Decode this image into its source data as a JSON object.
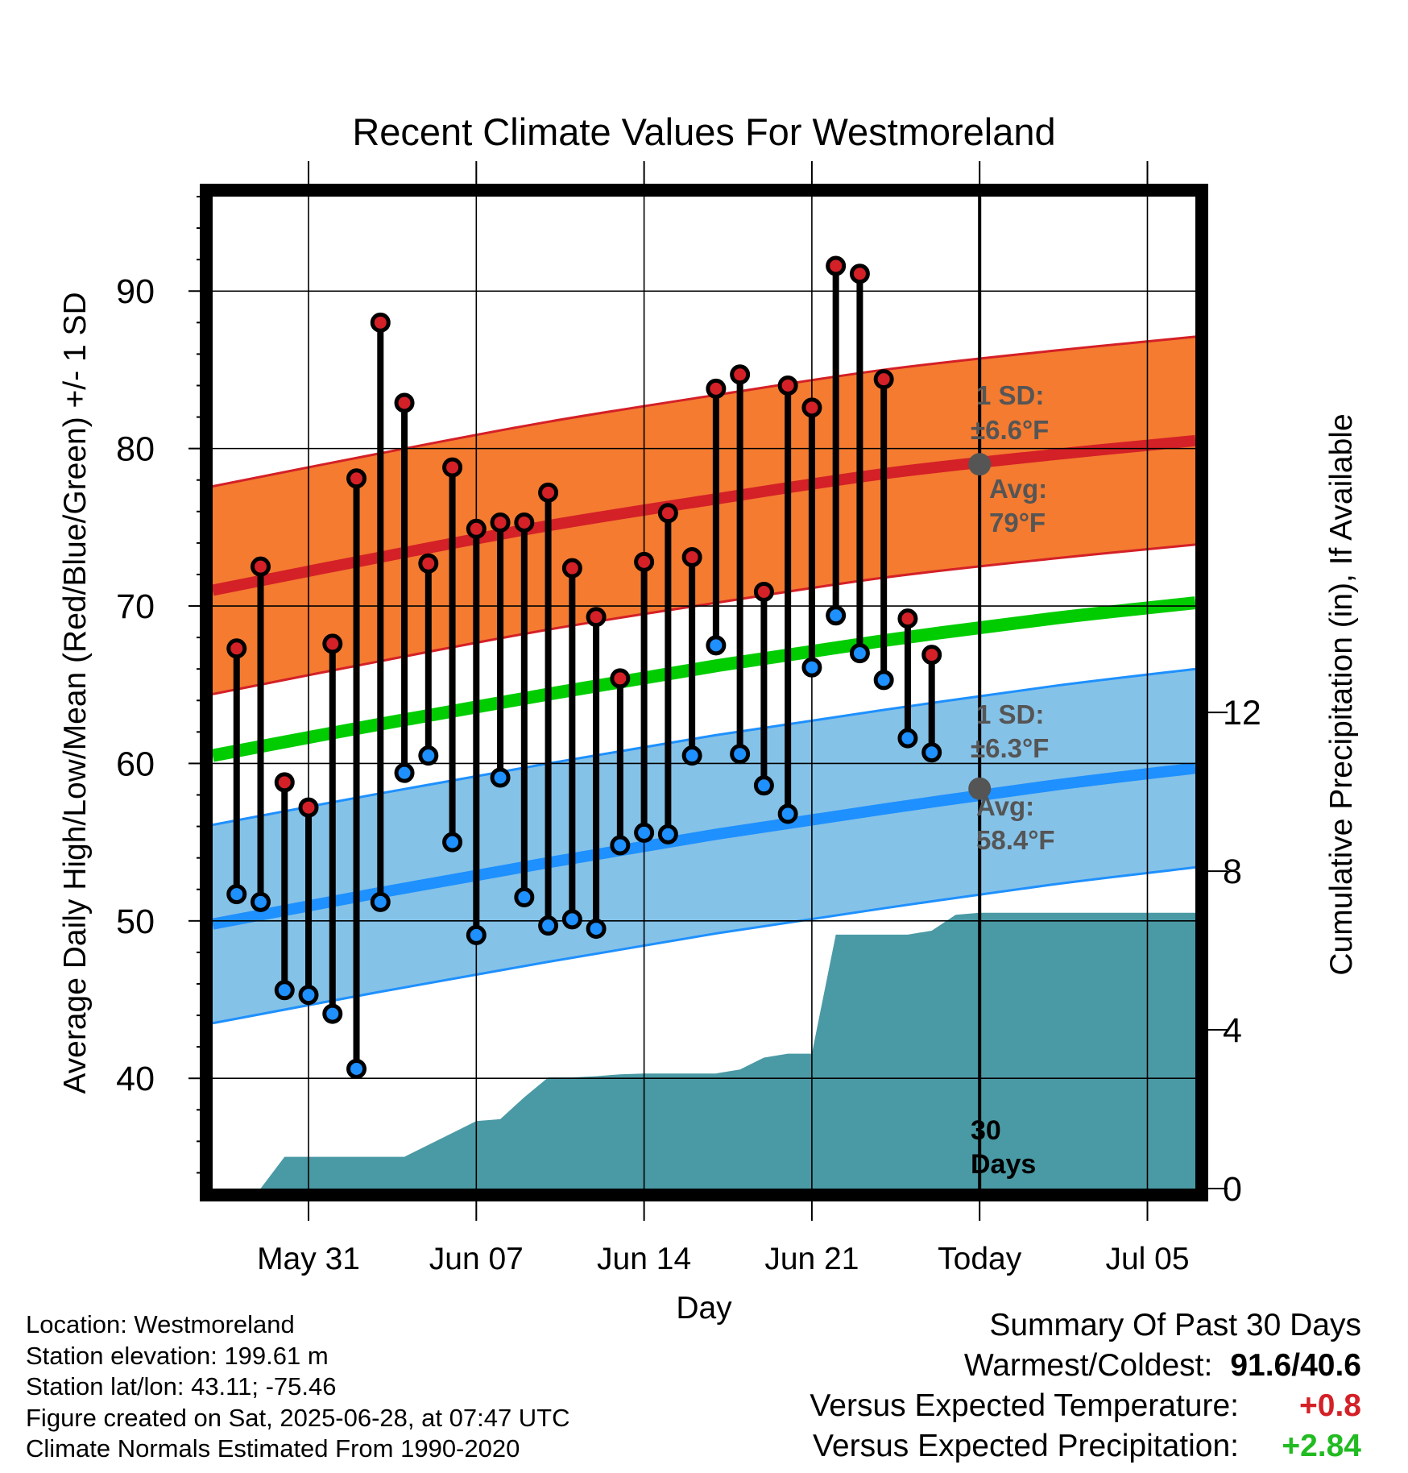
{
  "chart_data": {
    "type": "line",
    "title": "Recent Climate Values For Westmoreland",
    "xlabel": "Day",
    "ylabel": "Average Daily High/Low/Mean (Red/Blue/Green) +/- 1 SD",
    "y2label": "Cumulative Precipitation (in), If Available",
    "xlim": [
      "2025-05-27",
      "2025-07-07"
    ],
    "ylim": [
      33,
      96
    ],
    "y2lim": [
      0,
      25
    ],
    "grid": true,
    "x_ticks": [
      {
        "date": "2025-05-31",
        "label": "May 31"
      },
      {
        "date": "2025-06-07",
        "label": "Jun 07"
      },
      {
        "date": "2025-06-14",
        "label": "Jun 14"
      },
      {
        "date": "2025-06-21",
        "label": "Jun 21"
      },
      {
        "date": "2025-06-28",
        "label": "Today"
      },
      {
        "date": "2025-07-05",
        "label": "Jul 05"
      }
    ],
    "y_ticks": [
      40,
      50,
      60,
      70,
      80,
      90
    ],
    "y2_ticks": [
      0,
      4,
      8,
      12
    ],
    "today": "2025-06-28",
    "days_label": "30\nDays",
    "daily": {
      "dates": [
        "2025-05-28",
        "2025-05-29",
        "2025-05-30",
        "2025-05-31",
        "2025-06-01",
        "2025-06-02",
        "2025-06-03",
        "2025-06-04",
        "2025-06-05",
        "2025-06-06",
        "2025-06-07",
        "2025-06-08",
        "2025-06-09",
        "2025-06-10",
        "2025-06-11",
        "2025-06-12",
        "2025-06-13",
        "2025-06-14",
        "2025-06-15",
        "2025-06-16",
        "2025-06-17",
        "2025-06-18",
        "2025-06-19",
        "2025-06-20",
        "2025-06-21",
        "2025-06-22",
        "2025-06-23",
        "2025-06-24",
        "2025-06-25",
        "2025-06-26",
        "2025-06-27"
      ],
      "high": [
        67.3,
        72.5,
        58.8,
        57.2,
        67.6,
        78.1,
        88.0,
        82.9,
        72.7,
        78.8,
        74.9,
        75.3,
        75.3,
        77.2,
        72.4,
        69.3,
        65.4,
        72.8,
        75.9,
        73.1,
        83.8,
        84.7,
        70.9,
        84.0,
        82.6,
        91.6,
        91.1,
        84.4,
        69.2,
        66.9,
        null
      ],
      "low": [
        51.7,
        51.2,
        45.6,
        45.3,
        44.1,
        40.6,
        51.2,
        59.4,
        60.5,
        55.0,
        49.1,
        59.1,
        51.5,
        49.7,
        50.1,
        49.5,
        54.8,
        55.6,
        55.5,
        60.5,
        67.5,
        60.6,
        58.6,
        56.8,
        66.1,
        69.4,
        67.0,
        65.3,
        61.6,
        60.7,
        null
      ]
    },
    "normals": {
      "dates": [
        "2025-05-27",
        "2025-06-03",
        "2025-06-10",
        "2025-06-17",
        "2025-06-24",
        "2025-07-01",
        "2025-07-07"
      ],
      "high_avg": [
        71.0,
        73.1,
        75.1,
        76.8,
        78.4,
        79.6,
        80.5
      ],
      "high_sd": 6.6,
      "low_avg": [
        49.8,
        51.8,
        53.7,
        55.5,
        57.1,
        58.6,
        59.7
      ],
      "low_sd": 6.3,
      "mean_avg": [
        60.5,
        62.5,
        64.4,
        66.2,
        67.8,
        69.2,
        70.2
      ]
    },
    "precip": {
      "dates": [
        "2025-05-29",
        "2025-05-30",
        "2025-06-04",
        "2025-06-07",
        "2025-06-08",
        "2025-06-09",
        "2025-06-10",
        "2025-06-11",
        "2025-06-12",
        "2025-06-13",
        "2025-06-14",
        "2025-06-17",
        "2025-06-18",
        "2025-06-19",
        "2025-06-20",
        "2025-06-21",
        "2025-06-22",
        "2025-06-23",
        "2025-06-24",
        "2025-06-25",
        "2025-06-26",
        "2025-06-27",
        "2025-06-28",
        "2025-07-07"
      ],
      "cumulative": [
        0,
        0.8,
        0.8,
        1.7,
        1.75,
        2.3,
        2.8,
        2.8,
        2.83,
        2.88,
        2.9,
        2.9,
        3.0,
        3.3,
        3.4,
        3.4,
        6.4,
        6.4,
        6.4,
        6.4,
        6.5,
        6.9,
        6.95,
        6.95
      ]
    },
    "annotations": {
      "high_sd_label": "1 SD:",
      "high_sd_value": "±6.6°F",
      "high_avg_label": "Avg:",
      "high_avg_value": "79°F",
      "high_avg_marker": 79.0,
      "low_sd_label": "1 SD:",
      "low_sd_value": "±6.3°F",
      "low_avg_label": "Avg:",
      "low_avg_value": "58.4°F",
      "low_avg_marker": 58.4
    },
    "colors": {
      "high_band": "#f47b30",
      "high_line": "#d42027",
      "low_band": "#85c2e8",
      "low_line": "#1e90ff",
      "mean_line": "#00cc00",
      "precip": "#4a9aa5",
      "high_dot": "#d42027",
      "low_dot": "#1e90ff",
      "annotation": "#555555"
    }
  },
  "footer": {
    "location": "Location: Westmoreland",
    "elevation": "Station elevation: 199.61 m",
    "latlon": "Station lat/lon: 43.11; -75.46",
    "created": "Figure created on Sat, 2025-06-28, at 07:47 UTC",
    "normals": "Climate Normals Estimated From 1990-2020"
  },
  "summary": {
    "title": "Summary Of Past 30 Days",
    "warm_cold_label": "Warmest/Coldest:",
    "warm_cold_value": "91.6/40.6",
    "temp_label": "Versus Expected Temperature:",
    "temp_value": "+0.8",
    "temp_color": "#d42027",
    "precip_label": "Versus Expected Precipitation:",
    "precip_value": "+2.84",
    "precip_color": "#22bb22"
  }
}
